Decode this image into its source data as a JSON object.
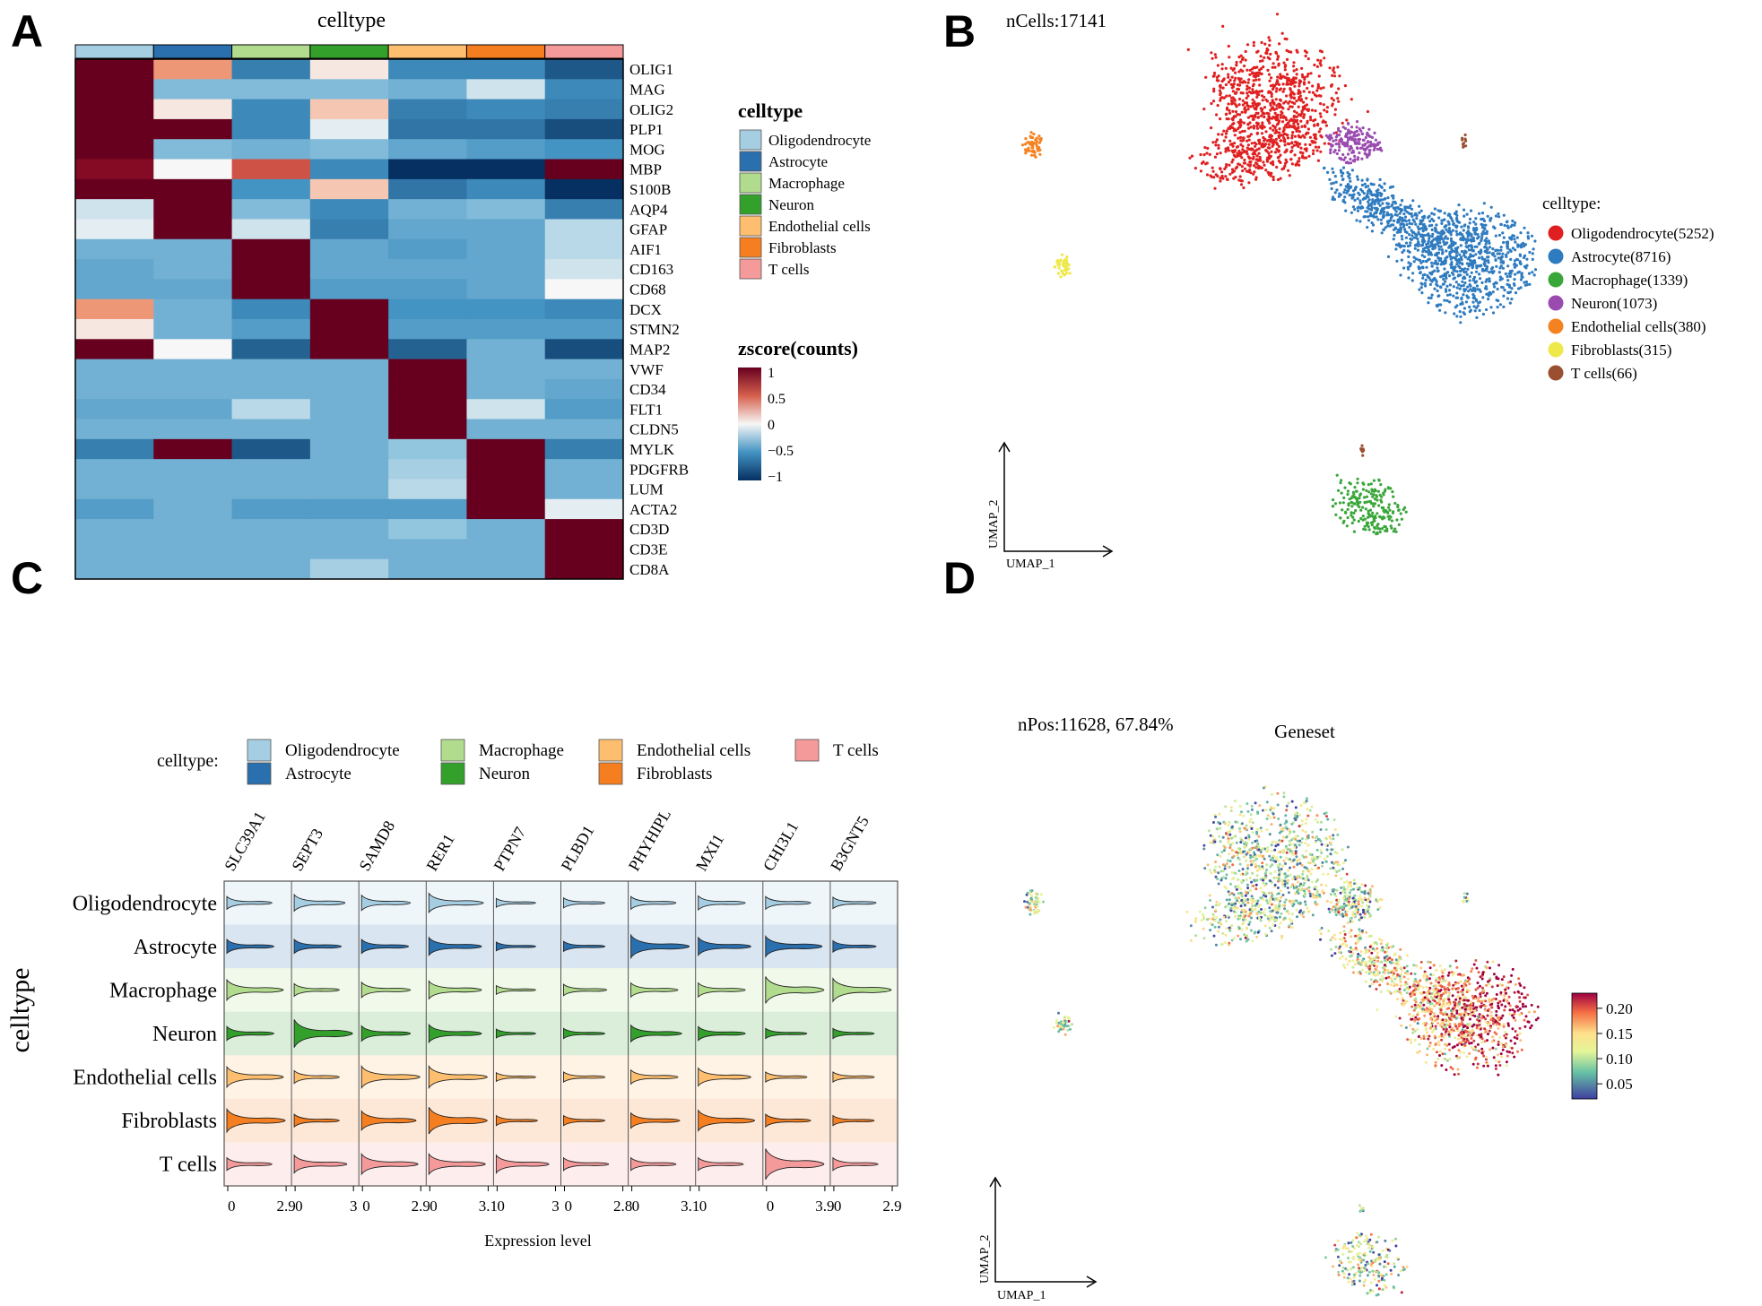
{
  "panels": {
    "A": "A",
    "B": "B",
    "C": "C",
    "D": "D"
  },
  "colors": {
    "Oligodendrocyte": "#a6cee3",
    "Astrocyte": "#2a6fae",
    "Macrophage": "#b2dc8d",
    "Neuron": "#33a02c",
    "Endothelial cells": "#fdbf6f",
    "Fibroblasts": "#f57f20",
    "T cells": "#f59a9a"
  },
  "umap_colors": {
    "Oligodendrocyte": "#e02020",
    "Astrocyte": "#2f7bbf",
    "Macrophage": "#3aa63a",
    "Neuron": "#9a4bb0",
    "Endothelial cells": "#f58220",
    "Fibroblasts": "#eee84a",
    "T cells": "#9a5030"
  },
  "chart_data": [
    {
      "panel": "A",
      "type": "heatmap",
      "title": "celltype",
      "columns": [
        "Oligodendrocyte",
        "Astrocyte",
        "Macrophage",
        "Neuron",
        "Endothelial cells",
        "Fibroblasts",
        "T cells"
      ],
      "rows": [
        "OLIG1",
        "MAG",
        "OLIG2",
        "PLP1",
        "MOG",
        "MBP",
        "S100B",
        "AQP4",
        "GFAP",
        "AIF1",
        "CD163",
        "CD68",
        "DCX",
        "STMN2",
        "MAP2",
        "VWF",
        "CD34",
        "FLT1",
        "CLDN5",
        "MYLK",
        "PDGFRB",
        "LUM",
        "ACTA2",
        "CD3D",
        "CD3E",
        "CD8A"
      ],
      "values": [
        [
          1,
          0.3,
          -0.6,
          0.05,
          -0.55,
          -0.55,
          -0.8
        ],
        [
          1,
          -0.3,
          -0.3,
          -0.3,
          -0.35,
          -0.1,
          -0.55
        ],
        [
          1,
          0.05,
          -0.55,
          0.15,
          -0.6,
          -0.55,
          -0.6
        ],
        [
          1,
          1,
          -0.55,
          -0.05,
          -0.65,
          -0.65,
          -0.85
        ],
        [
          1,
          -0.3,
          -0.35,
          -0.3,
          -0.4,
          -0.45,
          -0.5
        ],
        [
          0.9,
          0.0,
          0.55,
          -0.55,
          -1,
          -1,
          1
        ],
        [
          1,
          1,
          -0.5,
          0.15,
          -0.65,
          -0.55,
          -1
        ],
        [
          -0.1,
          1,
          -0.3,
          -0.55,
          -0.35,
          -0.3,
          -0.6
        ],
        [
          -0.05,
          1,
          -0.1,
          -0.6,
          -0.4,
          -0.4,
          -0.15
        ],
        [
          -0.35,
          -0.35,
          1,
          -0.4,
          -0.45,
          -0.4,
          -0.15
        ],
        [
          -0.4,
          -0.35,
          1,
          -0.4,
          -0.4,
          -0.4,
          -0.1
        ],
        [
          -0.4,
          -0.4,
          1,
          -0.45,
          -0.45,
          -0.4,
          0.0
        ],
        [
          0.3,
          -0.35,
          -0.55,
          1,
          -0.5,
          -0.5,
          -0.55
        ],
        [
          0.05,
          -0.35,
          -0.45,
          1,
          -0.45,
          -0.45,
          -0.45
        ],
        [
          1,
          0.0,
          -0.75,
          1,
          -0.75,
          -0.35,
          -0.85
        ],
        [
          -0.35,
          -0.35,
          -0.35,
          -0.35,
          1,
          -0.35,
          -0.35
        ],
        [
          -0.35,
          -0.35,
          -0.35,
          -0.35,
          1,
          -0.35,
          -0.4
        ],
        [
          -0.4,
          -0.4,
          -0.15,
          -0.35,
          1,
          -0.1,
          -0.45
        ],
        [
          -0.35,
          -0.35,
          -0.35,
          -0.35,
          1,
          -0.35,
          -0.35
        ],
        [
          -0.6,
          1,
          -0.8,
          -0.35,
          -0.25,
          1,
          -0.6
        ],
        [
          -0.35,
          -0.35,
          -0.35,
          -0.35,
          -0.2,
          1,
          -0.35
        ],
        [
          -0.35,
          -0.35,
          -0.35,
          -0.35,
          -0.15,
          1,
          -0.35
        ],
        [
          -0.45,
          -0.35,
          -0.45,
          -0.45,
          -0.45,
          1,
          -0.05
        ],
        [
          -0.35,
          -0.35,
          -0.35,
          -0.35,
          -0.25,
          -0.35,
          1
        ],
        [
          -0.35,
          -0.35,
          -0.35,
          -0.35,
          -0.35,
          -0.35,
          1
        ],
        [
          -0.35,
          -0.35,
          -0.35,
          -0.2,
          -0.35,
          -0.35,
          1
        ]
      ],
      "legend_title": "celltype",
      "colorbar_title": "zscore(counts)",
      "colorbar_ticks": [
        "1",
        "0.5",
        "0",
        "−0.5",
        "−1"
      ],
      "colorbar_range": [
        -1,
        1
      ]
    },
    {
      "panel": "B",
      "type": "scatter",
      "title": "nCells:17141",
      "xlabel": "UMAP_1",
      "ylabel": "UMAP_2",
      "legend_title": "celltype:",
      "legend_placement": "right",
      "series": [
        {
          "name": "Oligodendrocyte(5252)",
          "celltype": "Oligodendrocyte",
          "n": 5252
        },
        {
          "name": "Astrocyte(8716)",
          "celltype": "Astrocyte",
          "n": 8716
        },
        {
          "name": "Macrophage(1339)",
          "celltype": "Macrophage",
          "n": 1339
        },
        {
          "name": "Neuron(1073)",
          "celltype": "Neuron",
          "n": 1073
        },
        {
          "name": "Endothelial cells(380)",
          "celltype": "Endothelial cells",
          "n": 380
        },
        {
          "name": "Fibroblasts(315)",
          "celltype": "Fibroblasts",
          "n": 315
        },
        {
          "name": "T cells(66)",
          "celltype": "T cells",
          "n": 66
        }
      ]
    },
    {
      "panel": "C",
      "type": "violin",
      "legend_title": "celltype:",
      "legend_items": [
        "Oligodendrocyte",
        "Astrocyte",
        "Macrophage",
        "Neuron",
        "Endothelial cells",
        "Fibroblasts",
        "T cells"
      ],
      "ylabel": "celltype",
      "xlabel": "Expression level",
      "celltypes": [
        "Oligodendrocyte",
        "Astrocyte",
        "Macrophage",
        "Neuron",
        "Endothelial cells",
        "Fibroblasts",
        "T cells"
      ],
      "genes": [
        {
          "name": "SLC39A1",
          "max": "2.9",
          "width": [
            0.3,
            0.35,
            0.6,
            0.35,
            0.6,
            0.7,
            0.3
          ]
        },
        {
          "name": "SEPT3",
          "max": "3",
          "width": [
            0.45,
            0.35,
            0.3,
            0.9,
            0.3,
            0.3,
            0.5
          ]
        },
        {
          "name": "SAMD8",
          "max": "2.9",
          "width": [
            0.4,
            0.35,
            0.4,
            0.4,
            0.65,
            0.55,
            0.6
          ]
        },
        {
          "name": "RER1",
          "max": "3.1",
          "width": [
            0.55,
            0.5,
            0.5,
            0.5,
            0.65,
            0.85,
            0.6
          ]
        },
        {
          "name": "PTPN7",
          "max": "3",
          "width": [
            0.15,
            0.15,
            0.15,
            0.15,
            0.15,
            0.2,
            0.5
          ]
        },
        {
          "name": "PLBD1",
          "max": "2.8",
          "width": [
            0.2,
            0.2,
            0.25,
            0.2,
            0.2,
            0.2,
            0.3
          ]
        },
        {
          "name": "PHYHIPL",
          "max": "3.1",
          "width": [
            0.3,
            0.7,
            0.35,
            0.45,
            0.35,
            0.4,
            0.3
          ]
        },
        {
          "name": "MXI1",
          "max": "",
          "width": [
            0.35,
            0.5,
            0.35,
            0.35,
            0.5,
            0.6,
            0.3
          ]
        },
        {
          "name": "CHI3L1",
          "max": "3.9",
          "width": [
            0.3,
            0.6,
            0.85,
            0.2,
            0.2,
            0.3,
            1.0
          ]
        },
        {
          "name": "B3GNT5",
          "max": "2.9",
          "width": [
            0.25,
            0.25,
            0.7,
            0.2,
            0.2,
            0.2,
            0.3
          ]
        }
      ]
    },
    {
      "panel": "D",
      "type": "scatter",
      "title": "Geneset",
      "subtitle": "nPos:11628, 67.84%",
      "xlabel": "UMAP_1",
      "ylabel": "UMAP_2",
      "colorbar_ticks": [
        "0.20",
        "0.15",
        "0.10",
        "0.05"
      ],
      "colorbar_range": [
        0.02,
        0.23
      ]
    }
  ]
}
